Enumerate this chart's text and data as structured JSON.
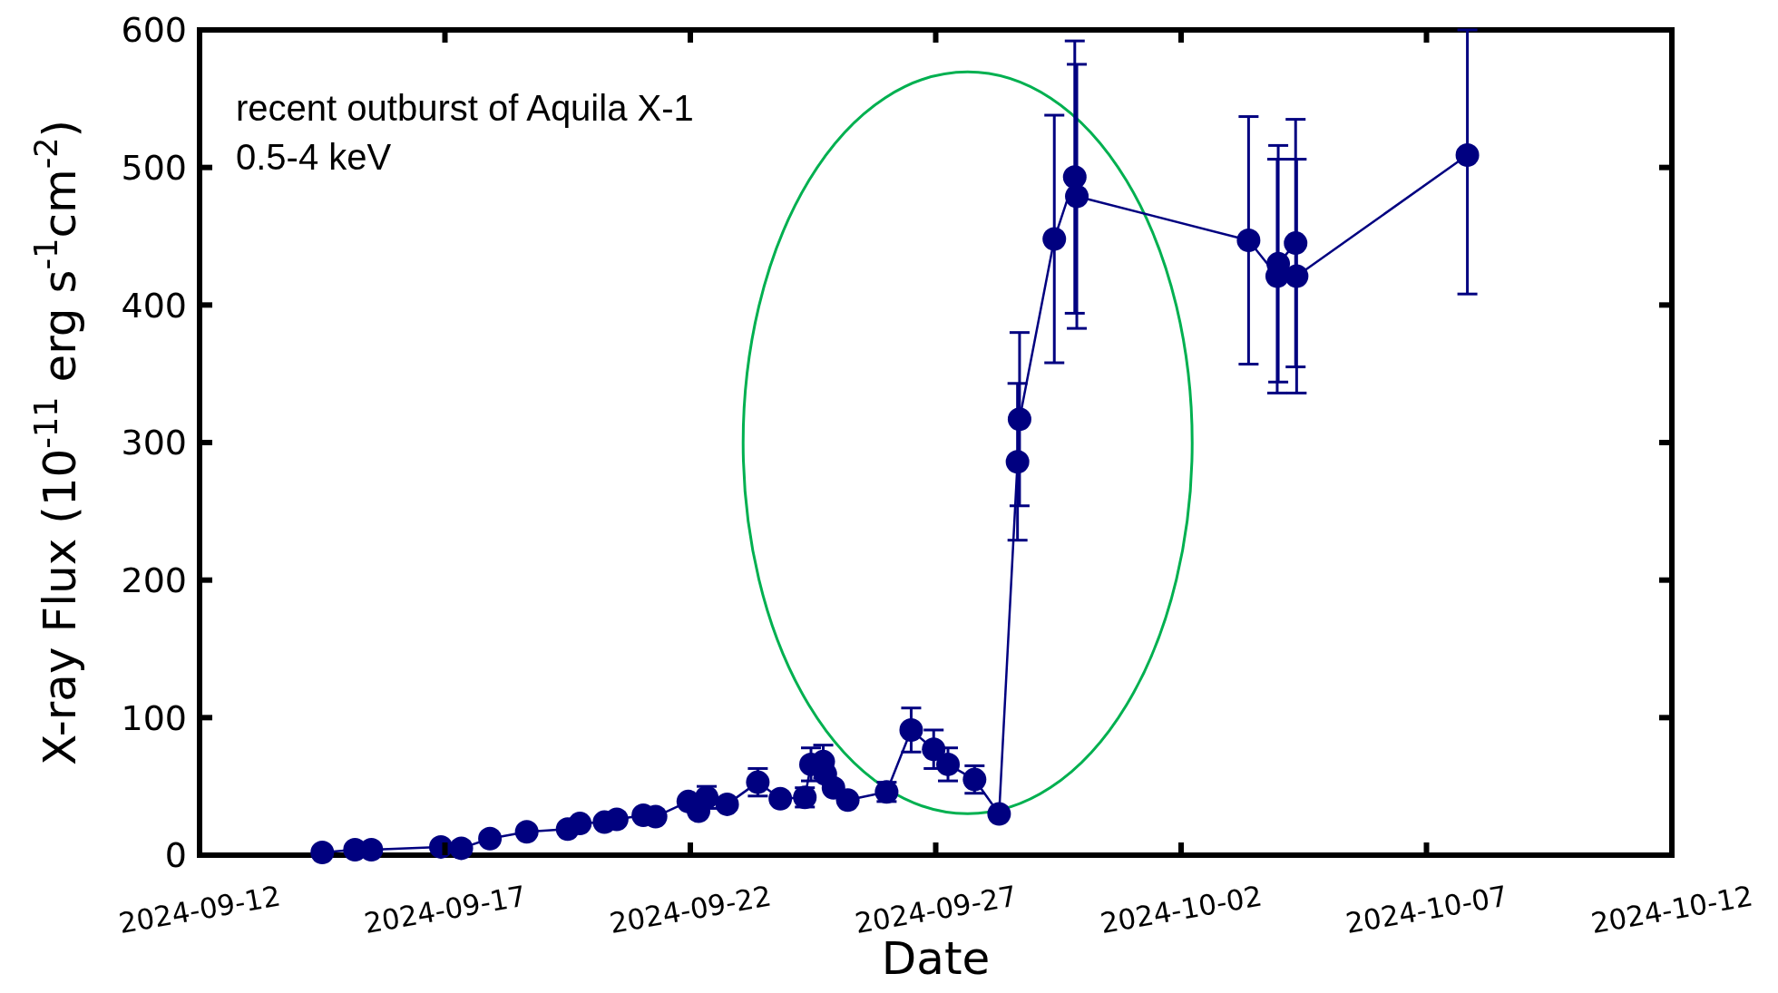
{
  "chart_data": {
    "type": "line",
    "xlabel": "Date",
    "ylabel": "X-ray Flux (10$^{-11}$ erg s$^{-1}$cm$^{-2}$)",
    "annotations": [
      "recent outburst of Aquila X-1",
      "0.5-4 keV"
    ],
    "xlim": [
      "2024-09-12",
      "2024-10-12"
    ],
    "xticks": [
      "2024-09-12",
      "2024-09-17",
      "2024-09-22",
      "2024-09-27",
      "2024-10-02",
      "2024-10-07",
      "2024-10-12"
    ],
    "ylim": [
      0,
      600
    ],
    "yticks": [
      0,
      100,
      200,
      300,
      400,
      500,
      600
    ],
    "grid": false,
    "marker": "circle",
    "line_style": "solid",
    "series": [
      {
        "color": "#000080",
        "x": [
          "2024-09-14T12:00",
          "2024-09-15T04:00",
          "2024-09-15T12:00",
          "2024-09-16T22:00",
          "2024-09-17T08:00",
          "2024-09-17T22:00",
          "2024-09-18T16:00",
          "2024-09-19T12:00",
          "2024-09-19T18:00",
          "2024-09-20T06:00",
          "2024-09-20T12:00",
          "2024-09-21T01:00",
          "2024-09-21T07:00",
          "2024-09-21T23:00",
          "2024-09-22T04:00",
          "2024-09-22T08:00",
          "2024-09-22T18:00",
          "2024-09-23T09:00",
          "2024-09-23T20:00",
          "2024-09-24T08:00",
          "2024-09-24T11:00",
          "2024-09-24T17:00",
          "2024-09-24T18:00",
          "2024-09-24T22:00",
          "2024-09-25T05:00",
          "2024-09-26T00:00",
          "2024-09-26T12:00",
          "2024-09-26T23:00",
          "2024-09-27T06:00",
          "2024-09-27T19:00",
          "2024-09-28T07:00",
          "2024-09-28T16:00",
          "2024-09-28T17:00",
          "2024-09-29T10:00",
          "2024-09-29T20:00",
          "2024-09-29T21:00",
          "2024-10-03T09:00",
          "2024-10-03T23:00",
          "2024-10-03T23:30",
          "2024-10-04T08:00",
          "2024-10-04T08:30",
          "2024-10-07T20:00"
        ],
        "values": [
          2,
          4,
          4,
          6,
          5,
          12,
          17,
          19,
          23,
          24,
          26,
          29,
          28,
          39,
          32,
          42,
          37,
          53,
          41,
          42,
          66,
          68,
          59,
          49,
          40,
          46,
          91,
          77,
          66,
          55,
          30,
          286,
          317,
          448,
          493,
          479,
          447,
          421,
          430,
          445,
          421,
          509
        ],
        "errors": [
          null,
          null,
          null,
          null,
          null,
          null,
          null,
          null,
          null,
          null,
          null,
          null,
          null,
          null,
          null,
          8,
          null,
          10,
          null,
          7,
          12,
          12,
          null,
          null,
          null,
          7,
          16,
          14,
          12,
          10,
          null,
          57,
          63,
          90,
          99,
          96,
          90,
          85,
          86,
          90,
          85,
          [
            408,
            600
          ]
        ]
      }
    ]
  }
}
